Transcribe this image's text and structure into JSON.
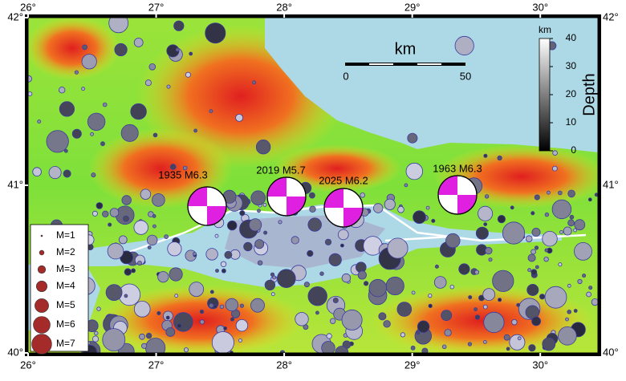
{
  "map": {
    "extent": {
      "lon": [
        26,
        30.45
      ],
      "lat": [
        40,
        42
      ]
    },
    "lon_ticks": [
      {
        "value": 26,
        "label": "26°"
      },
      {
        "value": 27,
        "label": "27°"
      },
      {
        "value": 28,
        "label": "28°"
      },
      {
        "value": 29,
        "label": "29°"
      },
      {
        "value": 30,
        "label": "30°"
      }
    ],
    "lat_ticks": [
      {
        "value": 40,
        "label": "40°"
      },
      {
        "value": 41,
        "label": "41°"
      },
      {
        "value": 42,
        "label": "42°"
      }
    ],
    "scale_bar": {
      "title": "km",
      "ticks": [
        0,
        50
      ]
    },
    "depth_bar": {
      "unit": "km",
      "title": "Depth",
      "range": [
        0,
        40
      ],
      "ticks": [
        0,
        10,
        20,
        30,
        40
      ]
    },
    "legend": [
      "M=1",
      "M=2",
      "M=3",
      "M=4",
      "M=5",
      "M=6",
      "M=7"
    ],
    "events": [
      "1935 M6.3",
      "2019 M5.7",
      "2025 M6.2",
      "1963 M6.3"
    ]
  }
}
